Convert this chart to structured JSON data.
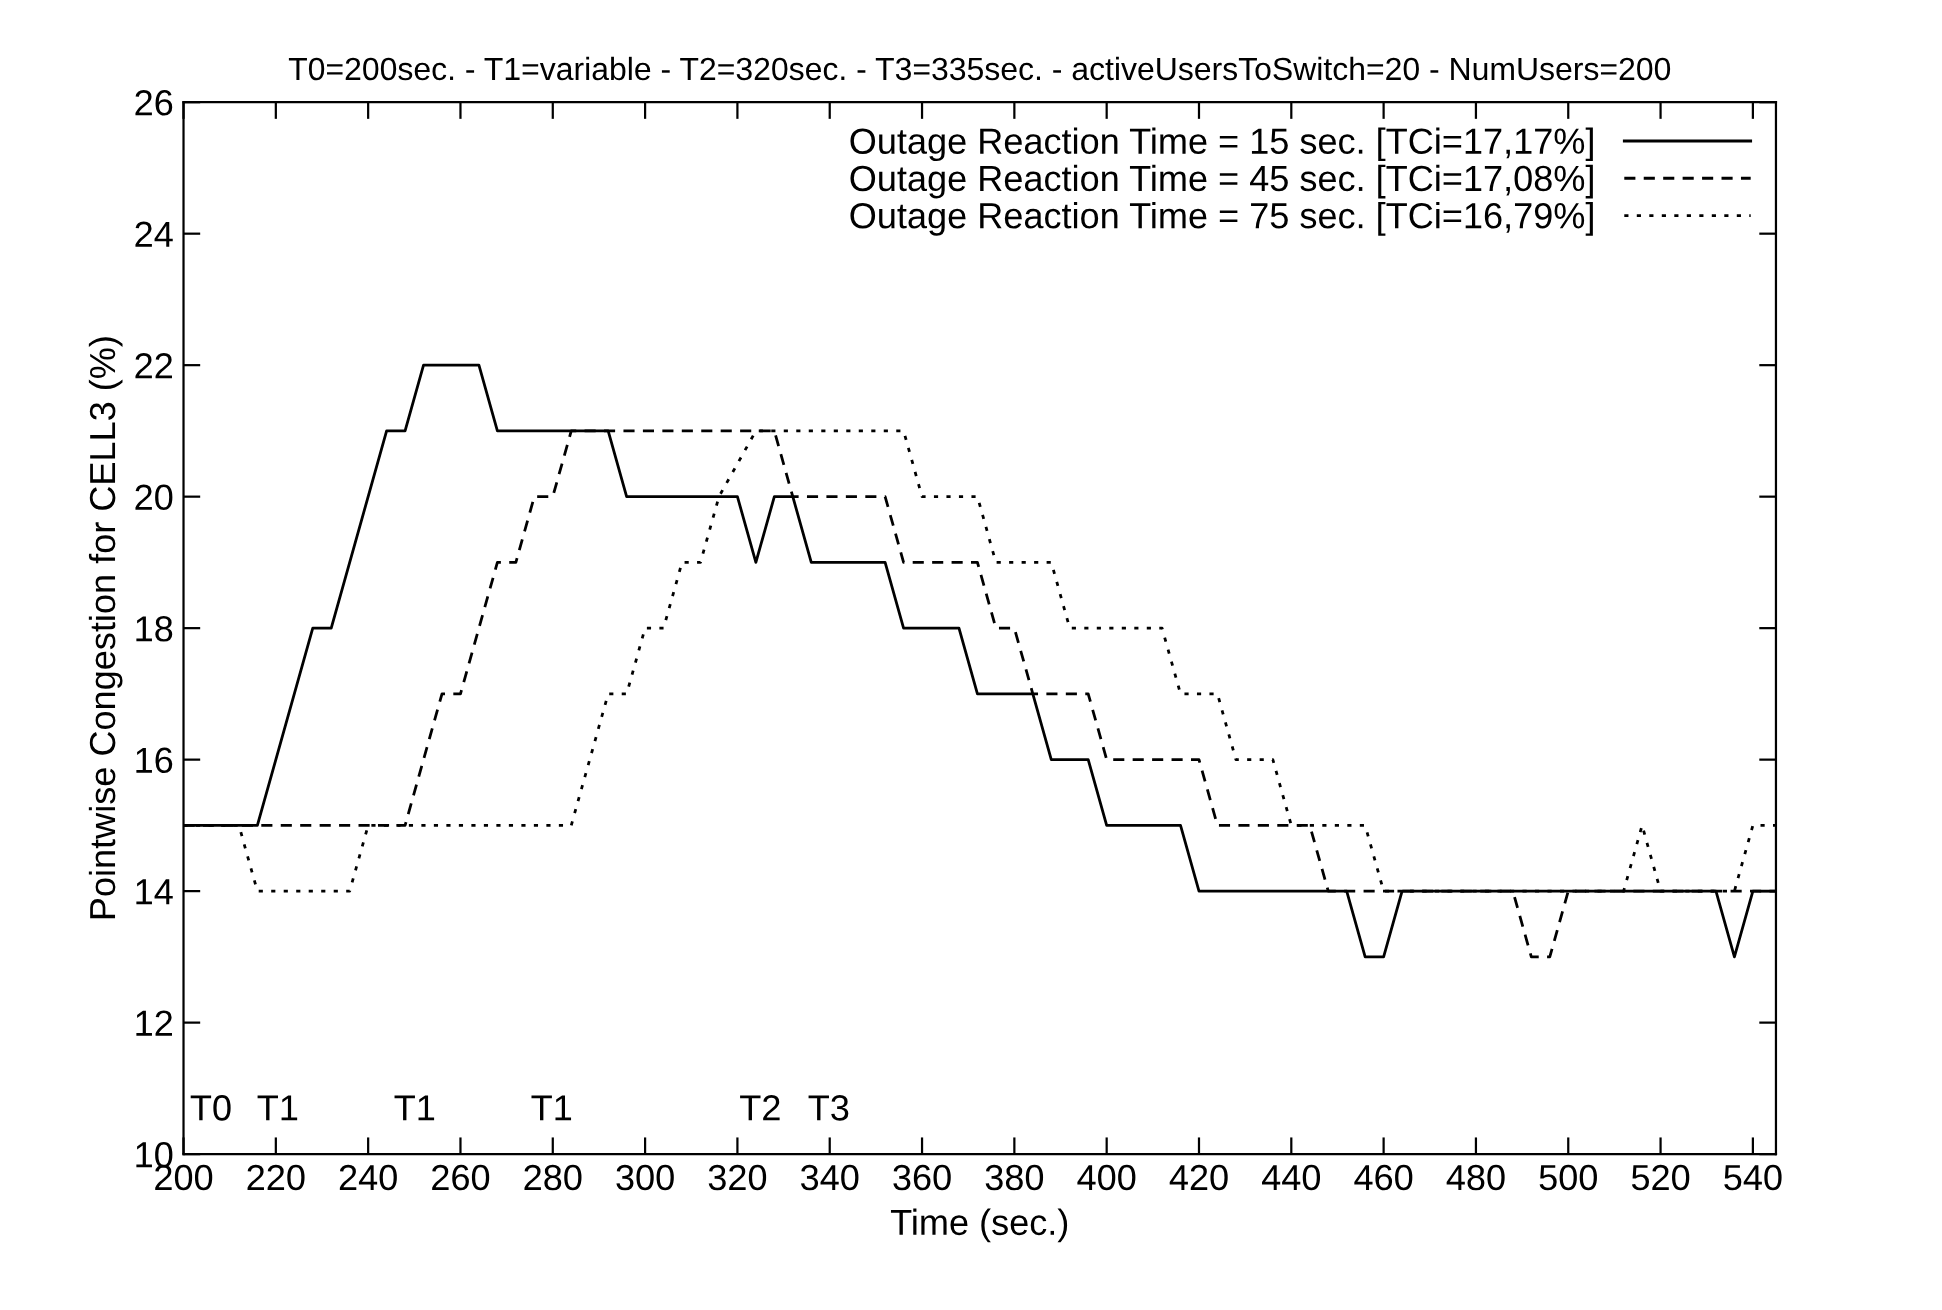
{
  "chart_data": {
    "type": "line",
    "title": "T0=200sec. - T1=variable - T2=320sec. - T3=335sec. - activeUsersToSwitch=20 - NumUsers=200",
    "xlabel": "Time (sec.)",
    "ylabel": "Pointwise Congestion for CELL3 (%)",
    "xlim": [
      200,
      545
    ],
    "ylim": [
      10,
      26
    ],
    "xticks": [
      200,
      220,
      240,
      260,
      280,
      300,
      320,
      340,
      360,
      380,
      400,
      420,
      440,
      460,
      480,
      500,
      520,
      540
    ],
    "yticks": [
      10,
      12,
      14,
      16,
      18,
      20,
      22,
      24,
      26
    ],
    "grid": false,
    "legend": "top right",
    "marker": "none",
    "series": [
      {
        "name": "Outage Reaction Time = 15 sec. [TCi=17,17%]",
        "color": "#000000",
        "line_style": "solid",
        "x": [
          200,
          216,
          228,
          232,
          244,
          248,
          252,
          264,
          268,
          292,
          296,
          320,
          324,
          328,
          332,
          336,
          352,
          356,
          368,
          372,
          384,
          388,
          396,
          400,
          416,
          420,
          452,
          456,
          460,
          464,
          532,
          536,
          540,
          545
        ],
        "values": [
          15,
          15,
          18,
          18,
          21,
          21,
          22,
          22,
          21,
          21,
          20,
          20,
          19,
          20,
          20,
          19,
          19,
          18,
          18,
          17,
          17,
          16,
          16,
          15,
          15,
          14,
          14,
          13,
          13,
          14,
          14,
          13,
          14,
          14
        ]
      },
      {
        "name": "Outage Reaction Time = 45 sec. [TCi=17,08%]",
        "color": "#000000",
        "line_style": "dashed",
        "x": [
          200,
          248,
          256,
          260,
          268,
          272,
          276,
          280,
          284,
          328,
          332,
          352,
          356,
          372,
          376,
          380,
          384,
          396,
          400,
          420,
          424,
          444,
          448,
          488,
          492,
          496,
          500,
          545
        ],
        "values": [
          15,
          15,
          17,
          17,
          19,
          19,
          20,
          20,
          21,
          21,
          20,
          20,
          19,
          19,
          18,
          18,
          17,
          17,
          16,
          16,
          15,
          15,
          14,
          14,
          13,
          13,
          14,
          14
        ]
      },
      {
        "name": "Outage Reaction Time = 75 sec. [TCi=16,79%]",
        "color": "#000000",
        "line_style": "dotted",
        "x": [
          200,
          212,
          216,
          236,
          240,
          284,
          292,
          296,
          300,
          304,
          308,
          312,
          316,
          324,
          356,
          360,
          372,
          376,
          388,
          392,
          412,
          416,
          424,
          428,
          436,
          440,
          456,
          460,
          512,
          516,
          520,
          536,
          540,
          545
        ],
        "values": [
          15,
          15,
          14,
          14,
          15,
          15,
          17,
          17,
          18,
          18,
          19,
          19,
          20,
          21,
          21,
          20,
          20,
          19,
          19,
          18,
          18,
          17,
          17,
          16,
          16,
          15,
          15,
          14,
          14,
          15,
          14,
          14,
          15,
          15
        ]
      }
    ],
    "annotations": [
      "T0",
      "T1",
      "T1",
      "T1",
      "T2",
      "T3"
    ]
  }
}
